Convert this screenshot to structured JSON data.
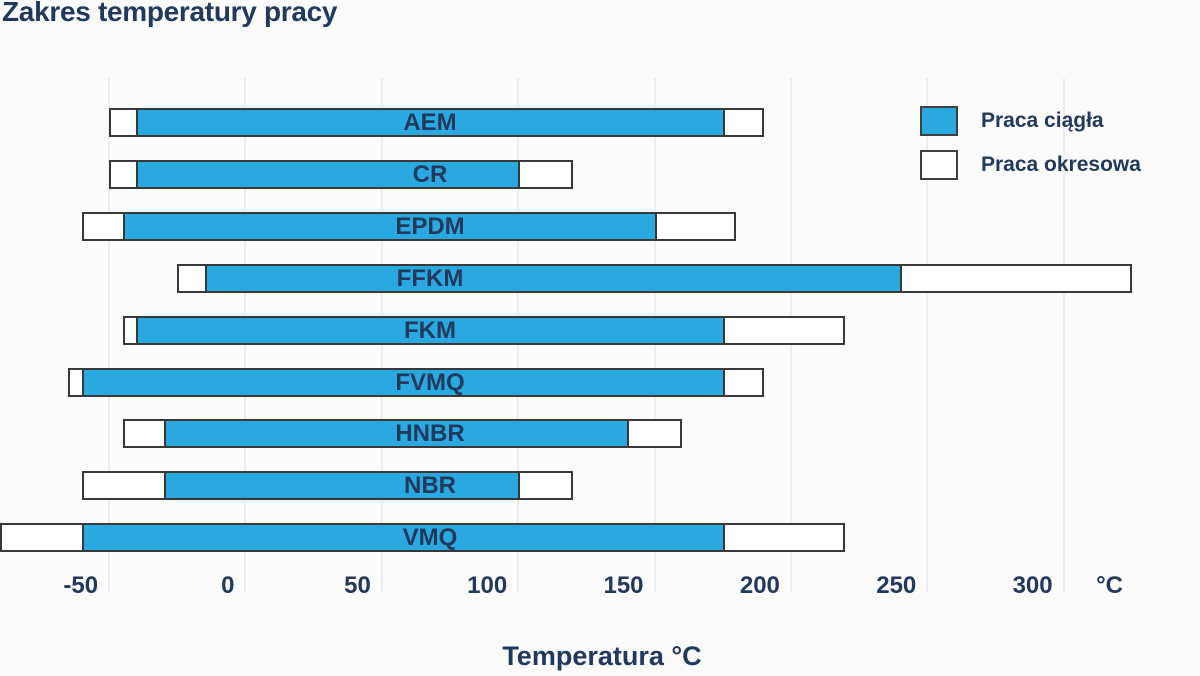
{
  "title": "Zakres temperatury pracy",
  "legend": {
    "continuous_label": "Praca ciągła",
    "intermittent_label": "Praca okresowa"
  },
  "axis": {
    "xlabel": "Temperatura °C",
    "unit_label": "°C"
  },
  "colors": {
    "continuous_fill": "#2aa9e0",
    "intermittent_fill": "#ffffff",
    "bar_border": "#383838",
    "text": "#20395c",
    "gridline": "#ececf2",
    "background": "#fbfbfc"
  },
  "chart_data": {
    "type": "bar",
    "orientation": "horizontal",
    "title": "Zakres temperatury pracy",
    "xlabel": "Temperatura °C",
    "x_unit": "°C",
    "xlim": [
      -90,
      350
    ],
    "xticks": [
      -50,
      0,
      50,
      100,
      150,
      200,
      250,
      300
    ],
    "grid": "vertical",
    "legend_position": "top-right",
    "series": [
      {
        "name": "Praca ciągła",
        "color": "#2aa9e0",
        "meaning": "continuous operating range"
      },
      {
        "name": "Praca okresowa",
        "color": "#ffffff",
        "meaning": "intermittent operating range"
      }
    ],
    "materials": [
      {
        "label": "AEM",
        "continuous": [
          -40,
          175
        ],
        "intermittent": [
          -50,
          190
        ]
      },
      {
        "label": "CR",
        "continuous": [
          -40,
          100
        ],
        "intermittent": [
          -50,
          120
        ]
      },
      {
        "label": "EPDM",
        "continuous": [
          -45,
          150
        ],
        "intermittent": [
          -60,
          180
        ]
      },
      {
        "label": "FFKM",
        "continuous": [
          -15,
          240
        ],
        "intermittent": [
          -25,
          325
        ]
      },
      {
        "label": "FKM",
        "continuous": [
          -40,
          175
        ],
        "intermittent": [
          -45,
          220
        ]
      },
      {
        "label": "FVMQ",
        "continuous": [
          -60,
          175
        ],
        "intermittent": [
          -65,
          190
        ]
      },
      {
        "label": "HNBR",
        "continuous": [
          -30,
          140
        ],
        "intermittent": [
          -45,
          160
        ]
      },
      {
        "label": "NBR",
        "continuous": [
          -30,
          100
        ],
        "intermittent": [
          -60,
          120
        ]
      },
      {
        "label": "VMQ",
        "continuous": [
          -60,
          175
        ],
        "intermittent": [
          -90,
          220
        ]
      }
    ]
  }
}
